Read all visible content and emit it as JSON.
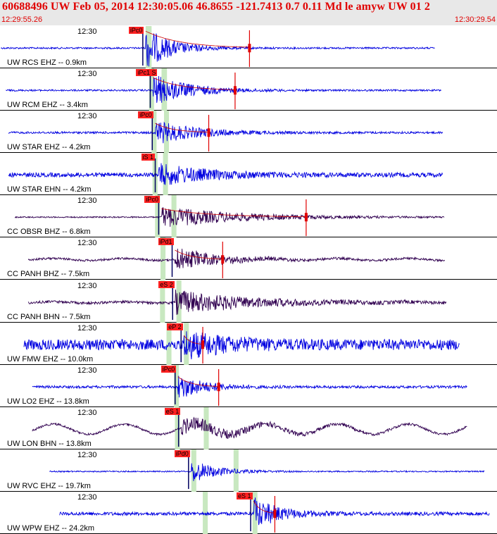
{
  "header": {
    "title": "60688496 UW Feb 05, 2014 12:30:05.06   46.8655 -121.7413  0.7 0.11 Md le amyw UW 01   2",
    "time_start": "12:29:55.26",
    "time_end": "12:30:29.54"
  },
  "colors": {
    "trace_blue": "#0000e0",
    "trace_purple": "#300050",
    "pick_red": "#ff2020",
    "window_green": "#c8e8c0",
    "header_bg": "#e8e8e8"
  },
  "chart_data": {
    "type": "line",
    "time_range": [
      "12:29:55.26",
      "12:30:29.54"
    ],
    "traces": [
      {
        "label": "UW RCS EHZ -- 0.9km",
        "time_label": "12:30",
        "pick": "iPc0",
        "color": "blue",
        "start": 0.002,
        "end": 0.875,
        "onset": 0.293,
        "amp": 1.0,
        "noise": 0.04,
        "decay": 0.05,
        "s_rel": 0.2,
        "marker": 0.502,
        "green": [
          0.293,
          0.305
        ],
        "sin": 0
      },
      {
        "label": "UW RCM EHZ -- 3.4km",
        "time_label": "12:30",
        "pick": "iPc1 S",
        "color": "blue",
        "start": 0.012,
        "end": 0.888,
        "onset": 0.308,
        "amp": 0.75,
        "noise": 0.04,
        "decay": 0.07,
        "s_rel": 0.03,
        "marker": 0.473,
        "green": [
          0.3,
          0.31,
          0.325,
          0.336
        ],
        "sin": 0
      },
      {
        "label": "UW STAR EHZ -- 4.2km",
        "time_label": "12:30",
        "pick": "iPc0",
        "color": "blue",
        "start": 0.017,
        "end": 0.891,
        "onset": 0.312,
        "amp": 0.55,
        "noise": 0.05,
        "decay": 0.08,
        "s_rel": 0.02,
        "marker": 0.42,
        "green": [
          0.305,
          0.315,
          0.33,
          0.34
        ],
        "sin": 0
      },
      {
        "label": "UW STAR EHN -- 4.2km",
        "time_label": "",
        "pick": "iS 1",
        "color": "blue",
        "start": 0.017,
        "end": 0.891,
        "onset": 0.318,
        "amp": 0.5,
        "noise": 0.1,
        "decay": 0.1,
        "s_rel": 0.0,
        "marker": null,
        "green": [
          0.307,
          0.317,
          0.328,
          0.338
        ],
        "sin": 0
      },
      {
        "label": "CC OBSR BHZ -- 6.8km",
        "time_label": "12:30",
        "pick": "iPc0",
        "color": "purple",
        "start": 0.03,
        "end": 0.894,
        "onset": 0.325,
        "amp": 0.5,
        "noise": 0.03,
        "decay": 0.15,
        "s_rel": 0.0,
        "marker": 0.616,
        "green": [
          0.312,
          0.322,
          0.345,
          0.355
        ],
        "sin": 0
      },
      {
        "label": "CC PANH BHZ -- 7.5km",
        "time_label": "12:30",
        "pick": "iPd1",
        "color": "purple",
        "start": 0.057,
        "end": 0.895,
        "onset": 0.352,
        "amp": 0.55,
        "noise": 0.05,
        "decay": 0.08,
        "s_rel": 0.0,
        "marker": 0.448,
        "green": [
          0.323,
          0.333
        ],
        "sin": 0.08
      },
      {
        "label": "CC PANH BHN -- 7.5km",
        "time_label": "12:30",
        "pick": "eS 2",
        "color": "purple",
        "start": 0.057,
        "end": 0.898,
        "onset": 0.353,
        "amp": 0.55,
        "noise": 0.06,
        "decay": 0.15,
        "s_rel": 0.0,
        "marker": null,
        "green": [
          0.322,
          0.332,
          0.355,
          0.365
        ],
        "sin": 0.05
      },
      {
        "label": "UW FMW EHZ -- 10.0km",
        "time_label": "12:30",
        "pick": "eP 2",
        "color": "blue",
        "start": 0.048,
        "end": 0.925,
        "onset": 0.37,
        "amp": 0.55,
        "noise": 0.25,
        "decay": 0.08,
        "s_rel": 0.0,
        "marker": 0.408,
        "green": [
          0.335,
          0.345,
          0.37,
          0.38
        ],
        "sin": 0
      },
      {
        "label": "UW LO2 EHZ -- 13.8km",
        "time_label": "12:30",
        "pick": "iPc0",
        "color": "blue",
        "start": 0.065,
        "end": 0.94,
        "onset": 0.358,
        "amp": 0.6,
        "noise": 0.06,
        "decay": 0.05,
        "s_rel": 0.08,
        "marker": 0.44,
        "green": [
          0.35,
          0.36
        ],
        "sin": 0
      },
      {
        "label": "UW LON BHN -- 13.8km",
        "time_label": "12:30",
        "pick": "eS 1",
        "color": "purple",
        "start": 0.065,
        "end": 0.94,
        "onset": 0.365,
        "amp": 0.35,
        "noise": 0.05,
        "decay": 0.12,
        "s_rel": 0.0,
        "marker": null,
        "green": [
          0.352,
          0.362,
          0.41,
          0.42
        ],
        "sin": 0.4
      },
      {
        "label": "UW RVC EHZ -- 19.7km",
        "time_label": "12:30",
        "pick": "iPd0",
        "color": "blue",
        "start": 0.1,
        "end": 0.975,
        "onset": 0.385,
        "amp": 0.55,
        "noise": 0.03,
        "decay": 0.05,
        "s_rel": 0.0,
        "marker": null,
        "green": [
          0.385,
          0.395,
          0.47,
          0.48
        ],
        "sin": 0
      },
      {
        "label": "UW WPW EHZ -- 24.2km",
        "time_label": "12:30",
        "pick": "eS 1",
        "color": "blue",
        "start": 0.12,
        "end": 0.985,
        "onset": 0.51,
        "amp": 0.75,
        "noise": 0.08,
        "decay": 0.05,
        "s_rel": 0.0,
        "marker": 0.553,
        "green": [
          0.408,
          0.418,
          0.508,
          0.518
        ],
        "sin": 0
      }
    ]
  }
}
